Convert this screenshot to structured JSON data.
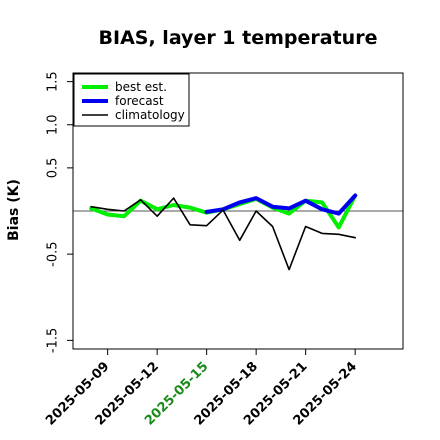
{
  "chart_data": {
    "type": "line",
    "title": "BIAS, layer 1 temperature",
    "xlabel": "",
    "ylabel": "Bias (K)",
    "ylim": [
      -1.6,
      1.6
    ],
    "yticks": [
      "-1.5",
      "-0.5",
      "0.5",
      "1.0",
      "1.5"
    ],
    "ytick_values": [
      -1.5,
      -0.5,
      0.5,
      1.0,
      1.5
    ],
    "xtick_labels": [
      "2025-05-09",
      "2025-05-12",
      "2025-05-15",
      "2025-05-18",
      "2025-05-21",
      "2025-05-24"
    ],
    "xtick_days": [
      9,
      12,
      15,
      18,
      21,
      24
    ],
    "highlight_tick": "2025-05-15",
    "highlight_color": "#1a8a1a",
    "xlim_days": [
      6.9,
      26.9
    ],
    "zero_line": true,
    "legend_position": "top-left",
    "days": [
      8,
      9,
      10,
      11,
      12,
      13,
      14,
      15,
      16,
      17,
      18,
      19,
      20,
      21,
      22,
      23,
      24
    ],
    "series": [
      {
        "name": "best est.",
        "color": "#00ee00",
        "width": 4,
        "values": [
          0.03,
          -0.04,
          -0.06,
          0.12,
          0.02,
          0.07,
          0.04,
          -0.02,
          0.02,
          0.08,
          0.14,
          0.04,
          -0.03,
          0.12,
          0.1,
          -0.19,
          0.18
        ]
      },
      {
        "name": "forecast",
        "color": "#0000ee",
        "width": 4,
        "values": [
          null,
          null,
          null,
          null,
          null,
          null,
          null,
          -0.01,
          0.02,
          0.1,
          0.15,
          0.05,
          0.03,
          0.12,
          0.02,
          -0.03,
          0.18
        ]
      },
      {
        "name": "climatology",
        "color": "#000000",
        "width": 1.6,
        "values": [
          0.05,
          0.02,
          0.0,
          0.13,
          -0.06,
          0.15,
          -0.16,
          -0.17,
          0.01,
          -0.34,
          0.0,
          -0.18,
          -0.68,
          -0.18,
          -0.26,
          -0.27,
          -0.31
        ]
      }
    ]
  }
}
